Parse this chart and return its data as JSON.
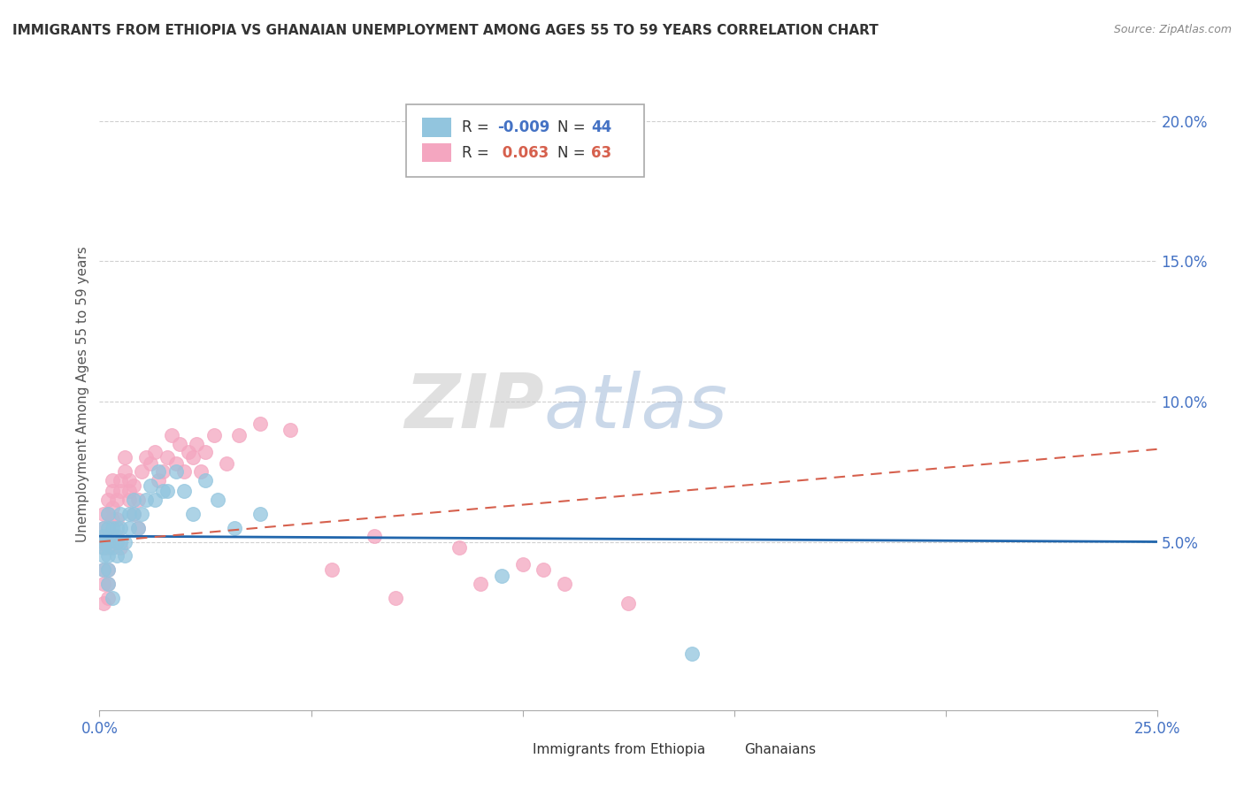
{
  "title": "IMMIGRANTS FROM ETHIOPIA VS GHANAIAN UNEMPLOYMENT AMONG AGES 55 TO 59 YEARS CORRELATION CHART",
  "source": "Source: ZipAtlas.com",
  "ylabel": "Unemployment Among Ages 55 to 59 years",
  "xlim": [
    0.0,
    0.25
  ],
  "ylim": [
    -0.01,
    0.215
  ],
  "yticks": [
    0.05,
    0.1,
    0.15,
    0.2
  ],
  "ytick_labels": [
    "5.0%",
    "10.0%",
    "15.0%",
    "20.0%"
  ],
  "xtick_labels_left": "0.0%",
  "xtick_labels_right": "25.0%",
  "title_fontsize": 11,
  "background_color": "#ffffff",
  "color_blue": "#92c5de",
  "color_pink": "#f4a6c0",
  "line_color_blue": "#2166ac",
  "line_color_pink": "#d6604d",
  "grid_color": "#d0d0d0",
  "watermark_zip": "ZIP",
  "watermark_atlas": "atlas",
  "ethiopia_x": [
    0.001,
    0.001,
    0.001,
    0.001,
    0.001,
    0.001,
    0.002,
    0.002,
    0.002,
    0.002,
    0.002,
    0.002,
    0.003,
    0.003,
    0.003,
    0.004,
    0.004,
    0.004,
    0.005,
    0.005,
    0.005,
    0.006,
    0.006,
    0.007,
    0.007,
    0.008,
    0.008,
    0.009,
    0.01,
    0.011,
    0.012,
    0.013,
    0.014,
    0.015,
    0.016,
    0.018,
    0.02,
    0.022,
    0.025,
    0.028,
    0.032,
    0.038,
    0.095,
    0.14
  ],
  "ethiopia_y": [
    0.05,
    0.045,
    0.055,
    0.048,
    0.052,
    0.04,
    0.05,
    0.055,
    0.045,
    0.06,
    0.04,
    0.035,
    0.055,
    0.048,
    0.03,
    0.055,
    0.05,
    0.045,
    0.055,
    0.05,
    0.06,
    0.05,
    0.045,
    0.06,
    0.055,
    0.06,
    0.065,
    0.055,
    0.06,
    0.065,
    0.07,
    0.065,
    0.075,
    0.068,
    0.068,
    0.075,
    0.068,
    0.06,
    0.072,
    0.065,
    0.055,
    0.06,
    0.038,
    0.01
  ],
  "ghanaian_x": [
    0.001,
    0.001,
    0.001,
    0.001,
    0.001,
    0.001,
    0.001,
    0.002,
    0.002,
    0.002,
    0.002,
    0.002,
    0.002,
    0.002,
    0.003,
    0.003,
    0.003,
    0.003,
    0.004,
    0.004,
    0.004,
    0.005,
    0.005,
    0.005,
    0.006,
    0.006,
    0.007,
    0.007,
    0.007,
    0.008,
    0.008,
    0.009,
    0.009,
    0.01,
    0.011,
    0.012,
    0.013,
    0.014,
    0.015,
    0.016,
    0.017,
    0.018,
    0.019,
    0.02,
    0.021,
    0.022,
    0.023,
    0.024,
    0.025,
    0.027,
    0.03,
    0.033,
    0.038,
    0.045,
    0.055,
    0.065,
    0.07,
    0.085,
    0.09,
    0.1,
    0.105,
    0.11,
    0.125
  ],
  "ghanaian_y": [
    0.055,
    0.05,
    0.06,
    0.048,
    0.04,
    0.035,
    0.028,
    0.055,
    0.048,
    0.04,
    0.035,
    0.06,
    0.065,
    0.03,
    0.058,
    0.062,
    0.068,
    0.072,
    0.052,
    0.058,
    0.065,
    0.068,
    0.072,
    0.048,
    0.075,
    0.08,
    0.065,
    0.068,
    0.072,
    0.06,
    0.07,
    0.065,
    0.055,
    0.075,
    0.08,
    0.078,
    0.082,
    0.072,
    0.075,
    0.08,
    0.088,
    0.078,
    0.085,
    0.075,
    0.082,
    0.08,
    0.085,
    0.075,
    0.082,
    0.088,
    0.078,
    0.088,
    0.092,
    0.09,
    0.04,
    0.052,
    0.03,
    0.048,
    0.035,
    0.042,
    0.04,
    0.035,
    0.028
  ],
  "eth_trend_x0": 0.0,
  "eth_trend_x1": 0.25,
  "eth_trend_y0": 0.052,
  "eth_trend_y1": 0.05,
  "gha_trend_x0": 0.0,
  "gha_trend_x1": 0.25,
  "gha_trend_y0": 0.05,
  "gha_trend_y1": 0.083
}
